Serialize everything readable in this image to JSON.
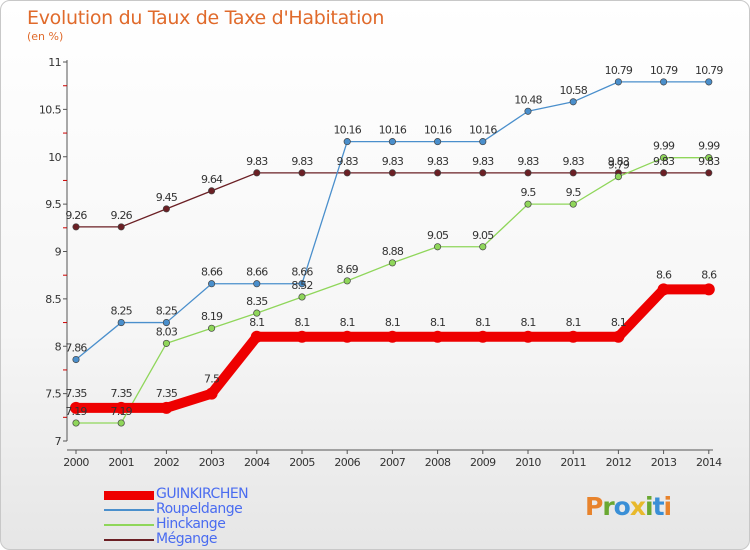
{
  "header": {
    "title": "Evolution du Taux de Taxe d'Habitation",
    "subtitle": "(en %)"
  },
  "logo": {
    "letters": [
      "P",
      "r",
      "o",
      "x",
      "i",
      "t",
      "i"
    ],
    "colors": [
      "#e8832c",
      "#6aa832",
      "#3a8fd6",
      "#e8b92c",
      "#6aa832",
      "#3a8fd6",
      "#e8832c"
    ]
  },
  "chart_data": {
    "type": "line",
    "title": "Evolution du Taux de Taxe d'Habitation",
    "subtitle": "(en %)",
    "x": [
      "2000",
      "2001",
      "2002",
      "2003",
      "2004",
      "2005",
      "2006",
      "2007",
      "2008",
      "2009",
      "2010",
      "2011",
      "2012",
      "2013",
      "2014"
    ],
    "yticks": [
      "7",
      "7.5",
      "8",
      "8.5",
      "9",
      "9.5",
      "10",
      "10.5",
      "11"
    ],
    "ylim": [
      7,
      11
    ],
    "grid": false,
    "legend_position": "bottom-left",
    "series": [
      {
        "name": "Mégange",
        "color": "#6b1f24",
        "values": [
          9.26,
          9.26,
          9.45,
          9.64,
          9.83,
          9.83,
          9.83,
          9.83,
          9.83,
          9.83,
          9.83,
          9.83,
          9.83,
          9.83,
          9.83
        ],
        "labels": [
          "9.26",
          "9.26",
          "9.45",
          "9.64",
          "9.83",
          "9.83",
          "9.83",
          "9.83",
          "9.83",
          "9.83",
          "9.83",
          "9.83",
          "9.83",
          "9.83",
          "9.83"
        ]
      },
      {
        "name": "Hinckange",
        "color": "#8fd65a",
        "values": [
          7.19,
          7.19,
          8.03,
          8.19,
          8.35,
          8.52,
          8.69,
          8.88,
          9.05,
          9.05,
          9.5,
          9.5,
          9.79,
          9.99,
          9.99
        ],
        "labels": [
          "7.19",
          "7.19",
          "8.03",
          "8.19",
          "8.35",
          "8.52",
          "8.69",
          "8.88",
          "9.05",
          "9.05",
          "9.5",
          "9.5",
          "9.79",
          "9.99",
          "9.99"
        ]
      },
      {
        "name": "Roupeldange",
        "color": "#4a8fcc",
        "values": [
          7.86,
          8.25,
          8.25,
          8.66,
          8.66,
          8.66,
          10.16,
          10.16,
          10.16,
          10.16,
          10.48,
          10.58,
          10.79,
          10.79,
          10.79
        ],
        "labels": [
          "7.86",
          "8.25",
          "8.25",
          "8.66",
          "8.66",
          "8.66",
          "10.16",
          "10.16",
          "10.16",
          "10.16",
          "10.48",
          "10.58",
          "10.79",
          "10.79",
          "10.79"
        ]
      },
      {
        "name": "GUINKIRCHEN",
        "color": "#ee0000",
        "values": [
          7.35,
          7.35,
          7.35,
          7.5,
          8.1,
          8.1,
          8.1,
          8.1,
          8.1,
          8.1,
          8.1,
          8.1,
          8.1,
          8.6,
          8.6
        ],
        "labels": [
          "7.35",
          "7.35",
          "7.35",
          "7.5",
          "8.1",
          "8.1",
          "8.1",
          "8.1",
          "8.1",
          "8.1",
          "8.1",
          "8.1",
          "8.1",
          "8.6",
          "8.6"
        ]
      }
    ],
    "legend": [
      "GUINKIRCHEN",
      "Roupeldange",
      "Hinckange",
      "Mégange"
    ]
  }
}
